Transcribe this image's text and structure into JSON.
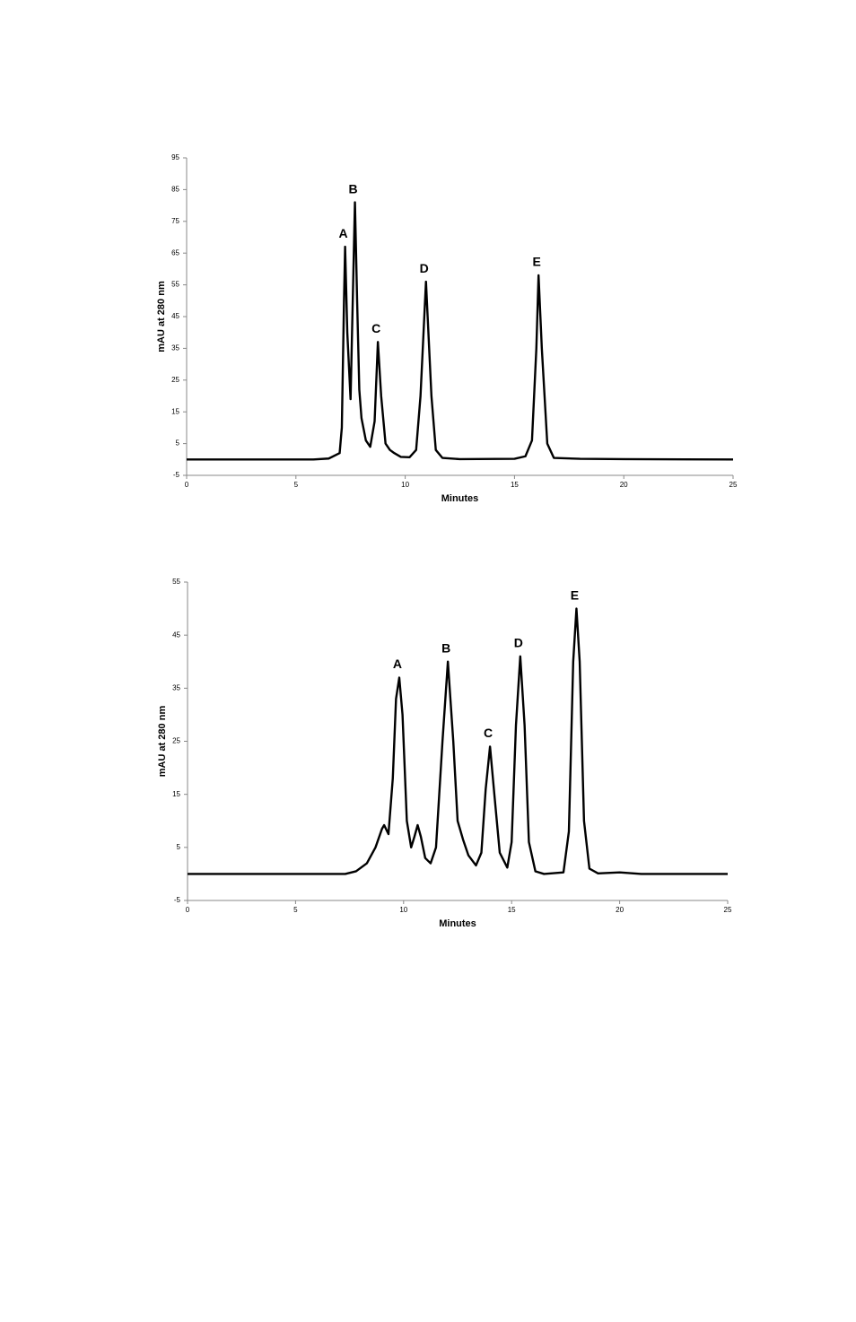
{
  "chart_data": [
    {
      "type": "line",
      "x_label": "Minutes",
      "y_label": "mAU at 280 nm",
      "color": "#000000",
      "xlim": [
        0,
        25
      ],
      "xticks": [
        0,
        5,
        10,
        15,
        20,
        25
      ],
      "ylim": [
        -5,
        95
      ],
      "yticks": [
        -5,
        5,
        15,
        25,
        35,
        45,
        55,
        65,
        75,
        85,
        95
      ],
      "x": [
        0,
        5,
        5.8,
        6.5,
        7.0,
        7.1,
        7.2,
        7.25,
        7.35,
        7.5,
        7.6,
        7.7,
        7.8,
        7.9,
        8.0,
        8.2,
        8.4,
        8.6,
        8.75,
        8.9,
        9.1,
        9.3,
        9.5,
        9.8,
        10.2,
        10.5,
        10.7,
        10.95,
        11.2,
        11.4,
        11.7,
        12.5,
        15,
        15.5,
        15.8,
        16.0,
        16.1,
        16.25,
        16.5,
        16.8,
        18,
        20,
        25
      ],
      "values": [
        0,
        0,
        0,
        0.3,
        2,
        10,
        50,
        67,
        40,
        19,
        50,
        81,
        50,
        22,
        13,
        6,
        4,
        12,
        37,
        20,
        5,
        3,
        2,
        0.8,
        0.7,
        3,
        20,
        56,
        20,
        3,
        0.5,
        0.1,
        0.2,
        1,
        6,
        35,
        58,
        35,
        5,
        0.5,
        0.2,
        0.1,
        0
      ],
      "peaks": [
        {
          "label": "A",
          "x": 7.25,
          "y": 67
        },
        {
          "label": "B",
          "x": 7.7,
          "y": 81
        },
        {
          "label": "C",
          "x": 8.75,
          "y": 37
        },
        {
          "label": "D",
          "x": 10.95,
          "y": 56
        },
        {
          "label": "E",
          "x": 16.1,
          "y": 58
        }
      ]
    },
    {
      "type": "line",
      "x_label": "Minutes",
      "y_label": "mAU at 280 nm",
      "color": "#000000",
      "xlim": [
        0,
        25
      ],
      "xticks": [
        0,
        5,
        10,
        15,
        20,
        25
      ],
      "ylim": [
        -5,
        55
      ],
      "yticks": [
        -5,
        5,
        15,
        25,
        35,
        45,
        55
      ],
      "x": [
        0,
        7.3,
        7.8,
        8.3,
        8.7,
        9.0,
        9.1,
        9.3,
        9.5,
        9.65,
        9.8,
        9.95,
        10.15,
        10.35,
        10.5,
        10.65,
        10.8,
        11.0,
        11.25,
        11.5,
        11.8,
        12.05,
        12.3,
        12.5,
        12.75,
        13.0,
        13.35,
        13.6,
        13.8,
        14.0,
        14.2,
        14.45,
        14.8,
        15.0,
        15.2,
        15.4,
        15.6,
        15.8,
        16.1,
        16.5,
        17.4,
        17.65,
        17.85,
        18.0,
        18.15,
        18.35,
        18.6,
        19,
        20,
        21,
        25
      ],
      "values": [
        0,
        0,
        0.5,
        2,
        5,
        8.5,
        9.2,
        7.5,
        18,
        33,
        37,
        30,
        10,
        5,
        7,
        9.2,
        7,
        3,
        2,
        5,
        25,
        40,
        25,
        10,
        6.5,
        3.5,
        1.6,
        4,
        16,
        24,
        15,
        4,
        1.2,
        6,
        28,
        41,
        28,
        6,
        0.5,
        0,
        0.3,
        8,
        40,
        50,
        40,
        10,
        1,
        0.1,
        0.3,
        0,
        0
      ],
      "peaks": [
        {
          "label": "A",
          "x": 9.8,
          "y": 37
        },
        {
          "label": "B",
          "x": 12.05,
          "y": 40
        },
        {
          "label": "C",
          "x": 14.0,
          "y": 24
        },
        {
          "label": "D",
          "x": 15.4,
          "y": 41
        },
        {
          "label": "E",
          "x": 18.0,
          "y": 50
        }
      ]
    }
  ]
}
